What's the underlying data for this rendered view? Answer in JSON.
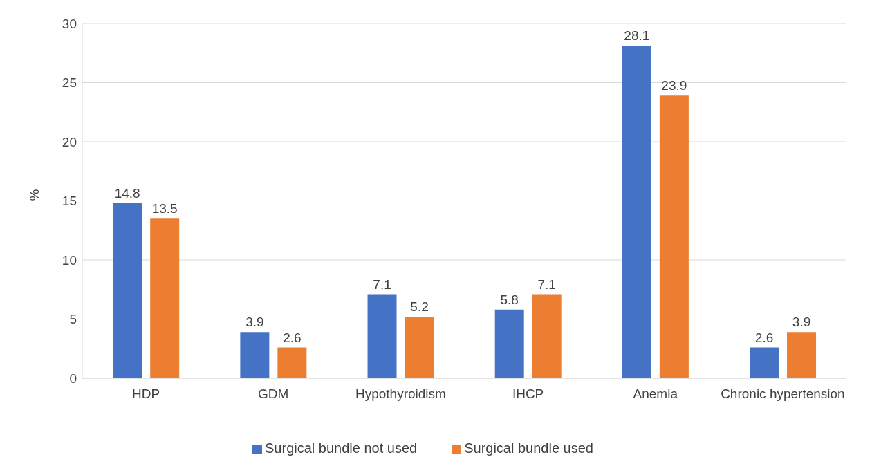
{
  "chart_data": {
    "type": "bar",
    "ylabel": "%",
    "categories": [
      "HDP",
      "GDM",
      "Hypothyroidism",
      "IHCP",
      "Anemia",
      "Chronic hypertension"
    ],
    "series": [
      {
        "name": "Surgical bundle not used",
        "color": "#4472c4",
        "values": [
          14.8,
          3.9,
          7.1,
          5.8,
          28.1,
          2.6
        ]
      },
      {
        "name": "Surgical bundle used",
        "color": "#ed7d31",
        "values": [
          13.5,
          2.6,
          5.2,
          7.1,
          23.9,
          3.9
        ]
      }
    ],
    "ylim": [
      0,
      30
    ],
    "yticks": [
      0,
      5,
      10,
      15,
      20,
      25,
      30
    ],
    "grid": "y",
    "legend": "bottom",
    "data_labels": true
  }
}
